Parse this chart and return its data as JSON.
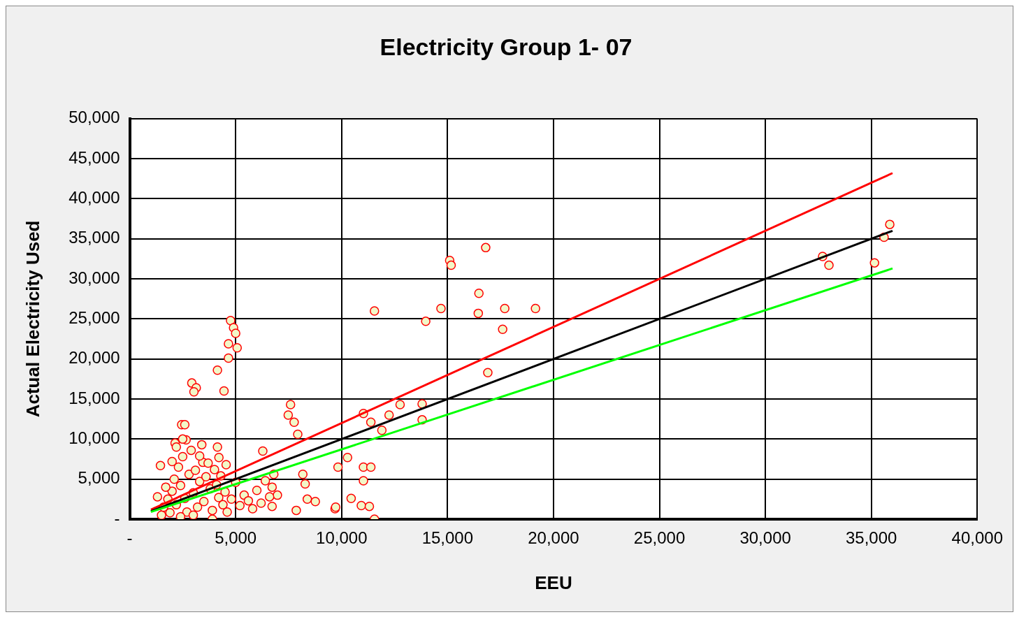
{
  "chart_data": {
    "type": "scatter",
    "title": "Electricity Group 1- 07",
    "xlabel": "EEU",
    "ylabel": "Actual Electricity Used",
    "xlim": [
      0,
      40000
    ],
    "xticks": [
      {
        "value": 0,
        "label": "-"
      },
      {
        "value": 5000,
        "label": "5,000"
      },
      {
        "value": 10000,
        "label": "10,000"
      },
      {
        "value": 15000,
        "label": "15,000"
      },
      {
        "value": 20000,
        "label": "20,000"
      },
      {
        "value": 25000,
        "label": "25,000"
      },
      {
        "value": 30000,
        "label": "30,000"
      },
      {
        "value": 35000,
        "label": "35,000"
      },
      {
        "value": 40000,
        "label": "40,000"
      }
    ],
    "ylim": [
      0,
      50000
    ],
    "yticks": [
      {
        "value": 0,
        "label": "-"
      },
      {
        "value": 5000,
        "label": "5,000"
      },
      {
        "value": 10000,
        "label": "10,000"
      },
      {
        "value": 15000,
        "label": "15,000"
      },
      {
        "value": 20000,
        "label": "20,000"
      },
      {
        "value": 25000,
        "label": "25,000"
      },
      {
        "value": 30000,
        "label": "30,000"
      },
      {
        "value": 35000,
        "label": "35,000"
      },
      {
        "value": 40000,
        "label": "40,000"
      },
      {
        "value": 45000,
        "label": "45,000"
      },
      {
        "value": 50000,
        "label": "50,000"
      }
    ],
    "grid": true,
    "legend": false,
    "marker": "circle",
    "series": [
      {
        "color": "#ff0000",
        "x": [
          11550,
          13970,
          14690,
          15100,
          15170,
          16800,
          16450,
          16480,
          17700,
          17600,
          19150,
          16900,
          32700,
          33000,
          35150,
          35870,
          35600,
          4760,
          4900,
          5000,
          5070,
          4660,
          4660,
          4140,
          2930,
          3140,
          3030,
          4450,
          7590,
          7480,
          7760,
          7930,
          11030,
          11380,
          12240,
          12760,
          13800,
          13800,
          11900,
          10280,
          9830,
          11030,
          11380,
          11030,
          9690,
          11550,
          10450,
          10930,
          11310,
          9720,
          8170,
          8280,
          8380,
          8760,
          7860,
          6280,
          4140,
          2140,
          2660,
          2450,
          1450,
          1310,
          6720,
          6970,
          6720,
          4210,
          4550,
          3450,
          3900,
          1500,
          1600,
          1800,
          1900,
          2000,
          2100,
          2200,
          2300,
          2400,
          2500,
          2600,
          2700,
          2800,
          2900,
          3000,
          3100,
          3200,
          3300,
          3400,
          3500,
          3600,
          3700,
          3800,
          3900,
          4000,
          4100,
          4200,
          4300,
          4400,
          4500,
          4600,
          4800,
          5000,
          5200,
          5400,
          5600,
          5800,
          6000,
          6200,
          6400,
          6600,
          6800,
          2200,
          2500,
          2000,
          1700,
          2600,
          3000,
          2400,
          3300
        ],
        "values": [
          26000,
          24700,
          26300,
          32300,
          31700,
          33900,
          25700,
          28200,
          26300,
          23700,
          26300,
          18300,
          32800,
          31700,
          32000,
          36800,
          35200,
          24800,
          23900,
          23200,
          21400,
          21900,
          20100,
          18600,
          17000,
          16400,
          15900,
          16000,
          14300,
          13000,
          12100,
          10600,
          13200,
          12100,
          13000,
          14300,
          14400,
          12400,
          11100,
          7700,
          6500,
          6500,
          6500,
          4800,
          1300,
          0,
          2600,
          1700,
          1600,
          1500,
          5600,
          4400,
          2500,
          2200,
          1100,
          8500,
          9000,
          9500,
          9900,
          11800,
          6700,
          2800,
          1600,
          3000,
          4000,
          7700,
          6800,
          7100,
          0,
          500,
          1500,
          2500,
          800,
          3500,
          5000,
          1800,
          6500,
          4200,
          7800,
          2600,
          900,
          5600,
          8600,
          3300,
          6100,
          1500,
          4700,
          9300,
          2200,
          5300,
          7000,
          3800,
          1100,
          6200,
          4300,
          2700,
          5400,
          1800,
          3400,
          900,
          2500,
          4600,
          1700,
          3000,
          2300,
          1300,
          3600,
          2000,
          4800,
          2800,
          5600,
          9000,
          10000,
          7200,
          4000,
          11800,
          500,
          300,
          7900
        ]
      },
      {
        "type": "line",
        "color": "#ff0000",
        "marker": "none",
        "x": [
          1000,
          36000
        ],
        "values": [
          1200,
          43200
        ]
      },
      {
        "type": "line",
        "color": "#000000",
        "marker": "none",
        "x": [
          1000,
          36000
        ],
        "values": [
          1000,
          36000
        ]
      },
      {
        "type": "line",
        "color": "#00ff00",
        "marker": "none",
        "x": [
          1000,
          36000
        ],
        "values": [
          900,
          31300
        ]
      }
    ]
  }
}
